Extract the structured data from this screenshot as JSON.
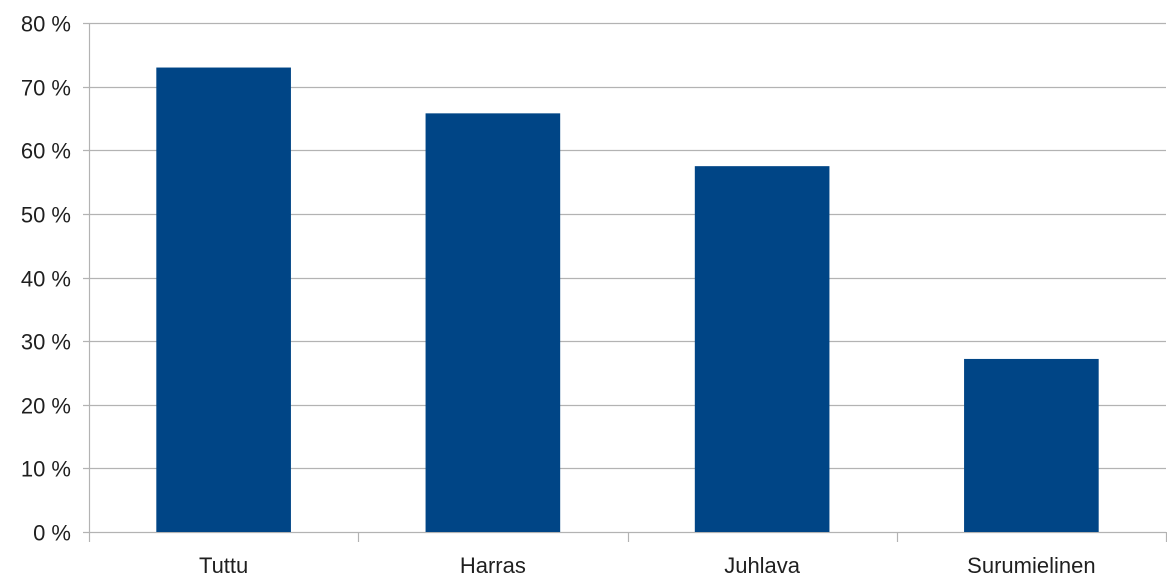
{
  "chart_data": {
    "type": "bar",
    "categories": [
      "Tuttu",
      "Harras",
      "Juhlava",
      "Surumielinen"
    ],
    "values": [
      73,
      65.8,
      57.5,
      27.2
    ],
    "title": "",
    "xlabel": "",
    "ylabel": "",
    "ylim": [
      0,
      80
    ],
    "yticks": [
      0,
      10,
      20,
      30,
      40,
      50,
      60,
      70,
      80
    ],
    "ytick_labels": [
      "0 %",
      "10 %",
      "20 %",
      "30 %",
      "40 %",
      "50 %",
      "60 %",
      "70 %",
      "80 %"
    ],
    "grid": true,
    "legend": "none",
    "bar_color": "#004586",
    "grid_color": "#b3b3b3"
  }
}
